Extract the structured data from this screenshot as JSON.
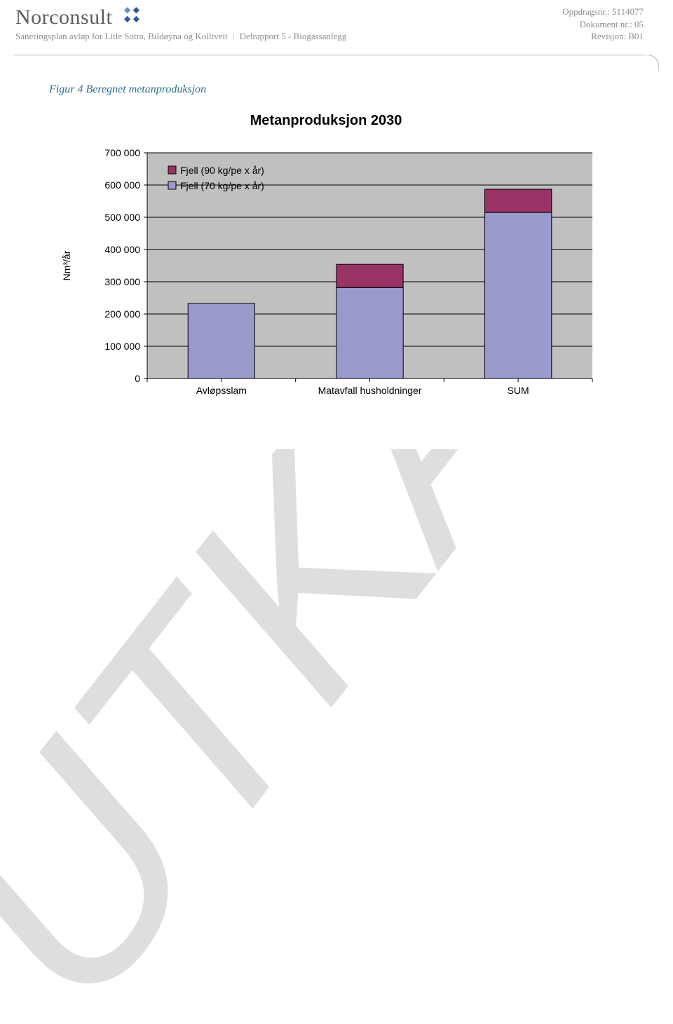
{
  "header": {
    "brand": "Norconsult",
    "subtitle_left": "Saneringsplan avløp for Litle Sotra, Bildøyna og Kolltveit",
    "subtitle_right": "Delrapport 5 - Biogassanlegg",
    "meta": {
      "oppdrag_label": "Oppdragsnr.:",
      "oppdrag_value": "5114077",
      "dokument_label": "Dokument nr.:",
      "dokument_value": "05",
      "revisjon_label": "Revisjon:",
      "revisjon_value": "B01"
    },
    "brand_icon_colors": [
      "#2e5c9a",
      "#6b8fc6",
      "#2e5c9a",
      "#2e5c9a"
    ]
  },
  "caption": "Figur 4 Beregnet metanproduksjon",
  "chart": {
    "type": "stacked-bar",
    "title": "Metanproduksjon 2030",
    "ylabel": "Nm³/år",
    "y_axis": {
      "min": 0,
      "max": 700000,
      "tick_step": 100000,
      "tick_labels": [
        "0",
        "100 000",
        "200 000",
        "300 000",
        "400 000",
        "500 000",
        "600 000",
        "700 000"
      ],
      "label_fontsize": 14,
      "tick_fontsize": 14
    },
    "categories": [
      "Avløpsslam",
      "Matavfall husholdninger",
      "SUM"
    ],
    "series": [
      {
        "key": "fjell90",
        "label": "Fjell (90 kg/pe x år)",
        "color": "#993366",
        "border": "#000000"
      },
      {
        "key": "fjell70",
        "label": "Fjell (70 kg/pe x år)",
        "color": "#9999cc",
        "border": "#000000"
      }
    ],
    "data": {
      "fjell70": [
        233000,
        282000,
        515000
      ],
      "fjell90": [
        0,
        72000,
        72000
      ]
    },
    "plot": {
      "background": "#c0c0c0",
      "grid_color": "#000000",
      "axis_color": "#000000",
      "bar_width_ratio": 0.45,
      "title_fontsize": 20,
      "cat_fontsize": 14,
      "legend_fontsize": 14,
      "legend_box_size": 11,
      "legend_border": "#000000"
    }
  },
  "watermark": {
    "text": "UTKAST",
    "color": "#dedede"
  }
}
